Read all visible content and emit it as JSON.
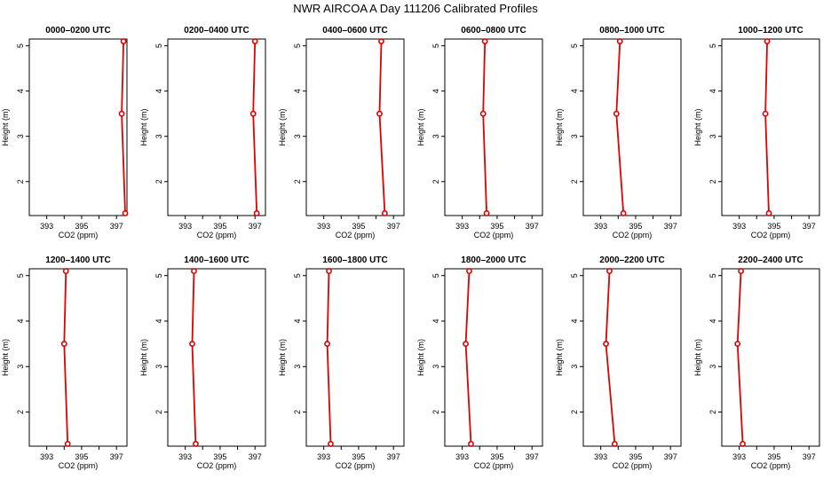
{
  "figure": {
    "title": "NWR AIRCOA A  Day 111206  Calibrated Profiles"
  },
  "colors": {
    "series": "#e00000",
    "axis": "#000000",
    "background": "#ffffff"
  },
  "chart_data": [
    {
      "type": "line",
      "title": "0000–0200 UTC",
      "xlabel": "CO2 (ppm)",
      "ylabel": "Height (m)",
      "xlim": [
        392.0,
        397.6
      ],
      "ylim": [
        1.25,
        5.15
      ],
      "grid": false,
      "xticks": [
        "393",
        "395",
        "397"
      ],
      "yticks": [
        "2",
        "3",
        "4",
        "5"
      ],
      "points": [
        {
          "x": 397.5,
          "y": 1.3
        },
        {
          "x": 397.3,
          "y": 3.5
        },
        {
          "x": 397.4,
          "y": 5.1
        }
      ]
    },
    {
      "type": "line",
      "title": "0200–0400 UTC",
      "xlabel": "CO2 (ppm)",
      "ylabel": "Height (m)",
      "xlim": [
        392.0,
        397.6
      ],
      "ylim": [
        1.25,
        5.15
      ],
      "grid": false,
      "xticks": [
        "393",
        "395",
        "397"
      ],
      "yticks": [
        "2",
        "3",
        "4",
        "5"
      ],
      "points": [
        {
          "x": 397.1,
          "y": 1.3
        },
        {
          "x": 396.9,
          "y": 3.5
        },
        {
          "x": 397.0,
          "y": 5.1
        }
      ]
    },
    {
      "type": "line",
      "title": "0400–0600 UTC",
      "xlabel": "CO2 (ppm)",
      "ylabel": "Height (m)",
      "xlim": [
        392.0,
        397.6
      ],
      "ylim": [
        1.25,
        5.15
      ],
      "grid": false,
      "xticks": [
        "393",
        "395",
        "397"
      ],
      "yticks": [
        "2",
        "3",
        "4",
        "5"
      ],
      "points": [
        {
          "x": 396.5,
          "y": 1.3
        },
        {
          "x": 396.2,
          "y": 3.5
        },
        {
          "x": 396.3,
          "y": 5.1
        }
      ]
    },
    {
      "type": "line",
      "title": "0600–0800 UTC",
      "xlabel": "CO2 (ppm)",
      "ylabel": "Height (m)",
      "xlim": [
        392.0,
        397.6
      ],
      "ylim": [
        1.25,
        5.15
      ],
      "grid": false,
      "xticks": [
        "393",
        "395",
        "397"
      ],
      "yticks": [
        "2",
        "3",
        "4",
        "5"
      ],
      "points": [
        {
          "x": 394.4,
          "y": 1.3
        },
        {
          "x": 394.2,
          "y": 3.5
        },
        {
          "x": 394.3,
          "y": 5.1
        }
      ]
    },
    {
      "type": "line",
      "title": "0800–1000 UTC",
      "xlabel": "CO2 (ppm)",
      "ylabel": "Height (m)",
      "xlim": [
        392.0,
        397.6
      ],
      "ylim": [
        1.25,
        5.15
      ],
      "grid": false,
      "xticks": [
        "393",
        "395",
        "397"
      ],
      "yticks": [
        "2",
        "3",
        "4",
        "5"
      ],
      "points": [
        {
          "x": 394.3,
          "y": 1.3
        },
        {
          "x": 393.9,
          "y": 3.5
        },
        {
          "x": 394.1,
          "y": 5.1
        }
      ]
    },
    {
      "type": "line",
      "title": "1000–1200 UTC",
      "xlabel": "CO2 (ppm)",
      "ylabel": "Height (m)",
      "xlim": [
        392.0,
        397.6
      ],
      "ylim": [
        1.25,
        5.15
      ],
      "grid": false,
      "xticks": [
        "393",
        "395",
        "397"
      ],
      "yticks": [
        "2",
        "3",
        "4",
        "5"
      ],
      "points": [
        {
          "x": 394.7,
          "y": 1.3
        },
        {
          "x": 394.5,
          "y": 3.5
        },
        {
          "x": 394.6,
          "y": 5.1
        }
      ]
    },
    {
      "type": "line",
      "title": "1200–1400 UTC",
      "xlabel": "CO2 (ppm)",
      "ylabel": "Height (m)",
      "xlim": [
        392.0,
        397.6
      ],
      "ylim": [
        1.25,
        5.15
      ],
      "grid": false,
      "xticks": [
        "393",
        "395",
        "397"
      ],
      "yticks": [
        "2",
        "3",
        "4",
        "5"
      ],
      "points": [
        {
          "x": 394.2,
          "y": 1.3
        },
        {
          "x": 394.0,
          "y": 3.5
        },
        {
          "x": 394.1,
          "y": 5.1
        }
      ]
    },
    {
      "type": "line",
      "title": "1400–1600 UTC",
      "xlabel": "CO2 (ppm)",
      "ylabel": "Height (m)",
      "xlim": [
        392.0,
        397.6
      ],
      "ylim": [
        1.25,
        5.15
      ],
      "grid": false,
      "xticks": [
        "393",
        "395",
        "397"
      ],
      "yticks": [
        "2",
        "3",
        "4",
        "5"
      ],
      "points": [
        {
          "x": 393.6,
          "y": 1.3
        },
        {
          "x": 393.4,
          "y": 3.5
        },
        {
          "x": 393.5,
          "y": 5.1
        }
      ]
    },
    {
      "type": "line",
      "title": "1600–1800 UTC",
      "xlabel": "CO2 (ppm)",
      "ylabel": "Height (m)",
      "xlim": [
        392.0,
        397.6
      ],
      "ylim": [
        1.25,
        5.15
      ],
      "grid": false,
      "xticks": [
        "393",
        "395",
        "397"
      ],
      "yticks": [
        "2",
        "3",
        "4",
        "5"
      ],
      "points": [
        {
          "x": 393.4,
          "y": 1.3
        },
        {
          "x": 393.2,
          "y": 3.5
        },
        {
          "x": 393.3,
          "y": 5.1
        }
      ]
    },
    {
      "type": "line",
      "title": "1800–2000 UTC",
      "xlabel": "CO2 (ppm)",
      "ylabel": "Height (m)",
      "xlim": [
        392.0,
        397.6
      ],
      "ylim": [
        1.25,
        5.15
      ],
      "grid": false,
      "xticks": [
        "393",
        "395",
        "397"
      ],
      "yticks": [
        "2",
        "3",
        "4",
        "5"
      ],
      "points": [
        {
          "x": 393.5,
          "y": 1.3
        },
        {
          "x": 393.2,
          "y": 3.5
        },
        {
          "x": 393.4,
          "y": 5.1
        }
      ]
    },
    {
      "type": "line",
      "title": "2000–2200 UTC",
      "xlabel": "CO2 (ppm)",
      "ylabel": "Height (m)",
      "xlim": [
        392.0,
        397.6
      ],
      "ylim": [
        1.25,
        5.15
      ],
      "grid": false,
      "xticks": [
        "393",
        "395",
        "397"
      ],
      "yticks": [
        "2",
        "3",
        "4",
        "5"
      ],
      "points": [
        {
          "x": 393.8,
          "y": 1.3
        },
        {
          "x": 393.3,
          "y": 3.5
        },
        {
          "x": 393.5,
          "y": 5.1
        }
      ]
    },
    {
      "type": "line",
      "title": "2200–2400 UTC",
      "xlabel": "CO2 (ppm)",
      "ylabel": "Height (m)",
      "xlim": [
        392.0,
        397.6
      ],
      "ylim": [
        1.25,
        5.15
      ],
      "grid": false,
      "xticks": [
        "393",
        "395",
        "397"
      ],
      "yticks": [
        "2",
        "3",
        "4",
        "5"
      ],
      "points": [
        {
          "x": 393.2,
          "y": 1.3
        },
        {
          "x": 392.9,
          "y": 3.5
        },
        {
          "x": 393.1,
          "y": 5.1
        }
      ]
    }
  ]
}
